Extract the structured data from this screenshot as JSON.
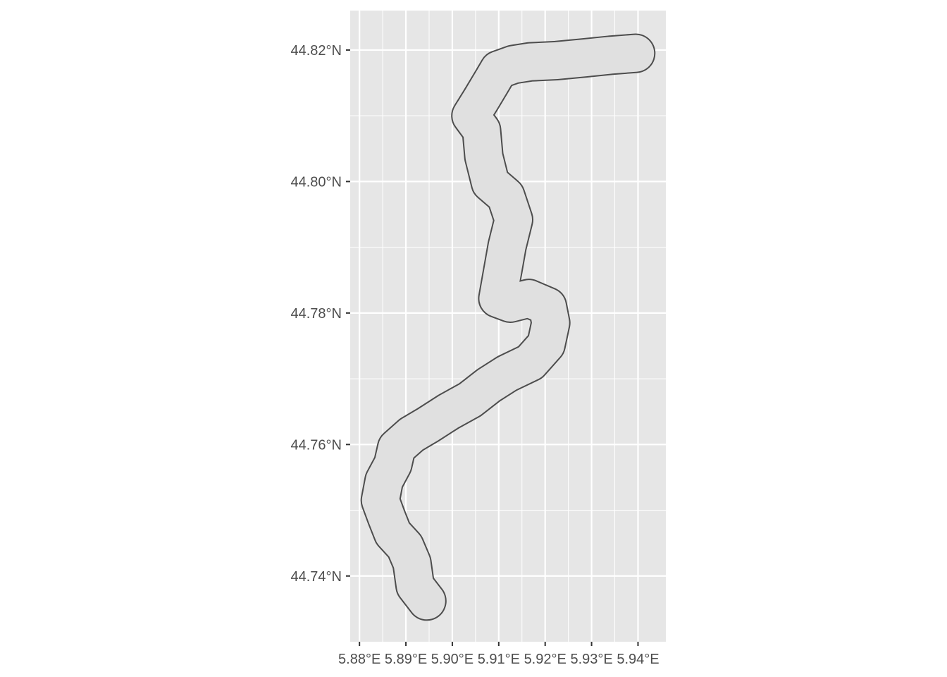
{
  "chart_data": {
    "type": "map",
    "xlabel": "",
    "ylabel": "",
    "x_ticks": [
      {
        "value": 5.88,
        "label": "5.88°E"
      },
      {
        "value": 5.89,
        "label": "5.89°E"
      },
      {
        "value": 5.9,
        "label": "5.90°E"
      },
      {
        "value": 5.91,
        "label": "5.91°E"
      },
      {
        "value": 5.92,
        "label": "5.92°E"
      },
      {
        "value": 5.93,
        "label": "5.93°E"
      },
      {
        "value": 5.94,
        "label": "5.94°E"
      }
    ],
    "y_ticks": [
      {
        "value": 44.74,
        "label": "44.74°N"
      },
      {
        "value": 44.76,
        "label": "44.76°N"
      },
      {
        "value": 44.78,
        "label": "44.78°N"
      },
      {
        "value": 44.8,
        "label": "44.80°N"
      },
      {
        "value": 44.82,
        "label": "44.82°N"
      }
    ],
    "xlim": [
      5.878,
      5.946
    ],
    "ylim": [
      44.73,
      44.826
    ],
    "grid": true,
    "fill_color": "#e0e0e0",
    "outline_color": "#4d4d4d",
    "panel_color": "#e6e6e6",
    "grid_color": "#ffffff",
    "track": [
      [
        5.8945,
        44.7362
      ],
      [
        5.892,
        44.7385
      ],
      [
        5.8913,
        44.742
      ],
      [
        5.8898,
        44.7445
      ],
      [
        5.8872,
        44.7465
      ],
      [
        5.8858,
        44.749
      ],
      [
        5.8845,
        44.7515
      ],
      [
        5.8853,
        44.7545
      ],
      [
        5.8872,
        44.757
      ],
      [
        5.888,
        44.7595
      ],
      [
        5.8912,
        44.7615
      ],
      [
        5.8948,
        44.763
      ],
      [
        5.8992,
        44.765
      ],
      [
        5.9038,
        44.7668
      ],
      [
        5.9078,
        44.769
      ],
      [
        5.9118,
        44.7708
      ],
      [
        5.9168,
        44.7725
      ],
      [
        5.9202,
        44.7752
      ],
      [
        5.9212,
        44.7785
      ],
      [
        5.9205,
        44.781
      ],
      [
        5.9165,
        44.7822
      ],
      [
        5.9125,
        44.7815
      ],
      [
        5.9098,
        44.7822
      ],
      [
        5.9108,
        44.7862
      ],
      [
        5.9118,
        44.7902
      ],
      [
        5.9132,
        44.7942
      ],
      [
        5.9115,
        44.7978
      ],
      [
        5.9082,
        44.7998
      ],
      [
        5.9068,
        44.8038
      ],
      [
        5.9063,
        44.8078
      ],
      [
        5.904,
        44.81
      ],
      [
        5.9062,
        44.8125
      ],
      [
        5.9085,
        44.8152
      ],
      [
        5.91,
        44.817
      ],
      [
        5.9132,
        44.8178
      ],
      [
        5.9168,
        44.8182
      ],
      [
        5.9225,
        44.8184
      ],
      [
        5.9285,
        44.8188
      ],
      [
        5.934,
        44.8192
      ],
      [
        5.9395,
        44.8195
      ]
    ],
    "buffer_deg": 0.0028
  }
}
